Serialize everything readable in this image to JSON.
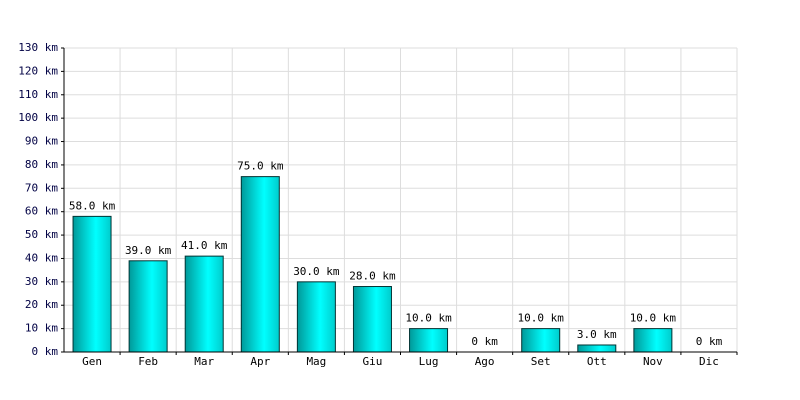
{
  "chart_data": {
    "type": "bar",
    "categories": [
      "Gen",
      "Feb",
      "Mar",
      "Apr",
      "Mag",
      "Giu",
      "Lug",
      "Ago",
      "Set",
      "Ott",
      "Nov",
      "Dic"
    ],
    "values": [
      58,
      39,
      41,
      75,
      30,
      28,
      10,
      0,
      10,
      3,
      10,
      0
    ],
    "value_labels": [
      "58.0 km",
      "39.0 km",
      "41.0 km",
      "75.0 km",
      "30.0 km",
      "28.0 km",
      "10.0 km",
      "0 km",
      "10.0 km",
      "3.0 km",
      "10.0 km",
      "0 km"
    ],
    "color": "#00cccc",
    "ylim": [
      0,
      130
    ],
    "yticks": [
      {
        "value": 0,
        "label": "0 km"
      },
      {
        "value": 10,
        "label": "10 km"
      },
      {
        "value": 20,
        "label": "20 km"
      },
      {
        "value": 30,
        "label": "30 km"
      },
      {
        "value": 40,
        "label": "40 km"
      },
      {
        "value": 50,
        "label": "50 km"
      },
      {
        "value": 60,
        "label": "60 km"
      },
      {
        "value": 70,
        "label": "70 km"
      },
      {
        "value": 80,
        "label": "80 km"
      },
      {
        "value": 90,
        "label": "90 km"
      },
      {
        "value": 100,
        "label": "100 km"
      },
      {
        "value": 110,
        "label": "110 km"
      },
      {
        "value": 120,
        "label": "120 km"
      },
      {
        "value": 130,
        "label": "130 km"
      }
    ],
    "grid": true
  }
}
